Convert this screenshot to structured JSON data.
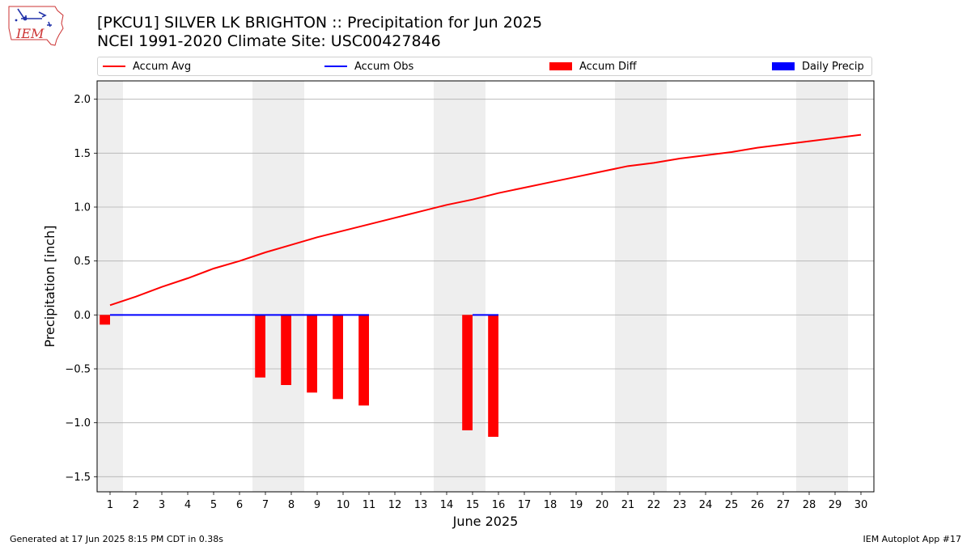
{
  "header": {
    "title_line1": "[PKCU1] SILVER LK BRIGHTON :: Precipitation for Jun 2025",
    "title_line2": "NCEI 1991-2020 Climate Site: USC00427846"
  },
  "logo": {
    "text": "IEM",
    "icon": "iowa-state-outline-icon"
  },
  "legend": [
    {
      "label": "Accum Avg",
      "kind": "line",
      "color": "#ff0000"
    },
    {
      "label": "Accum Obs",
      "kind": "line",
      "color": "#0000ff"
    },
    {
      "label": "Accum Diff",
      "kind": "patch",
      "color": "#ff0000"
    },
    {
      "label": "Daily Precip",
      "kind": "patch",
      "color": "#0000ff"
    }
  ],
  "footer": {
    "left": "Generated at 17 Jun 2025 8:15 PM CDT in 0.38s",
    "right": "IEM Autoplot App #17"
  },
  "chart_data": {
    "type": "bar",
    "xlabel": "June 2025",
    "ylabel": "Precipitation [inch]",
    "xlim": [
      0.5,
      30.5
    ],
    "ylim": [
      -1.64,
      2.17
    ],
    "y_ticks": [
      -1.5,
      -1.0,
      -0.5,
      0.0,
      0.5,
      1.0,
      1.5,
      2.0
    ],
    "y_tick_labels": [
      "−1.5",
      "−1.0",
      "−0.5",
      "0.0",
      "0.5",
      "1.0",
      "1.5",
      "2.0"
    ],
    "x_ticks": [
      1,
      2,
      3,
      4,
      5,
      6,
      7,
      8,
      9,
      10,
      11,
      12,
      13,
      14,
      15,
      16,
      17,
      18,
      19,
      20,
      21,
      22,
      23,
      24,
      25,
      26,
      27,
      28,
      29,
      30
    ],
    "grid": "horizontal",
    "legend_position": "top",
    "weekend_shading": {
      "color": "#eeeeee",
      "ranges": [
        [
          0.5,
          1.5
        ],
        [
          6.5,
          8.5
        ],
        [
          13.5,
          15.5
        ],
        [
          20.5,
          22.5
        ],
        [
          27.5,
          29.5
        ]
      ]
    },
    "series": [
      {
        "name": "Accum Avg",
        "type": "line",
        "color": "#ff0000",
        "x": [
          1,
          2,
          3,
          4,
          5,
          6,
          7,
          8,
          9,
          10,
          11,
          12,
          13,
          14,
          15,
          16,
          17,
          18,
          19,
          20,
          21,
          22,
          23,
          24,
          25,
          26,
          27,
          28,
          29,
          30
        ],
        "values": [
          0.09,
          0.17,
          0.26,
          0.34,
          0.43,
          0.5,
          0.58,
          0.65,
          0.72,
          0.78,
          0.84,
          0.9,
          0.96,
          1.02,
          1.07,
          1.13,
          1.18,
          1.23,
          1.28,
          1.33,
          1.38,
          1.41,
          1.45,
          1.48,
          1.51,
          1.55,
          1.58,
          1.61,
          1.64,
          1.67
        ]
      },
      {
        "name": "Accum Obs",
        "type": "line",
        "color": "#0000ff",
        "x": [
          1,
          2,
          3,
          4,
          5,
          6,
          7,
          8,
          9,
          10,
          11,
          12,
          13,
          14,
          15,
          16
        ],
        "values": [
          0,
          0,
          0,
          0,
          0,
          0,
          0,
          0,
          0,
          0,
          0,
          null,
          null,
          null,
          0,
          0
        ]
      },
      {
        "name": "Accum Diff",
        "type": "bar",
        "color": "#ff0000",
        "x": [
          1,
          7,
          8,
          9,
          10,
          11,
          15,
          16
        ],
        "values": [
          -0.09,
          -0.58,
          -0.65,
          -0.72,
          -0.78,
          -0.84,
          -1.07,
          -1.13
        ]
      },
      {
        "name": "Daily Precip",
        "type": "bar",
        "color": "#0000ff",
        "x": [],
        "values": []
      }
    ]
  }
}
